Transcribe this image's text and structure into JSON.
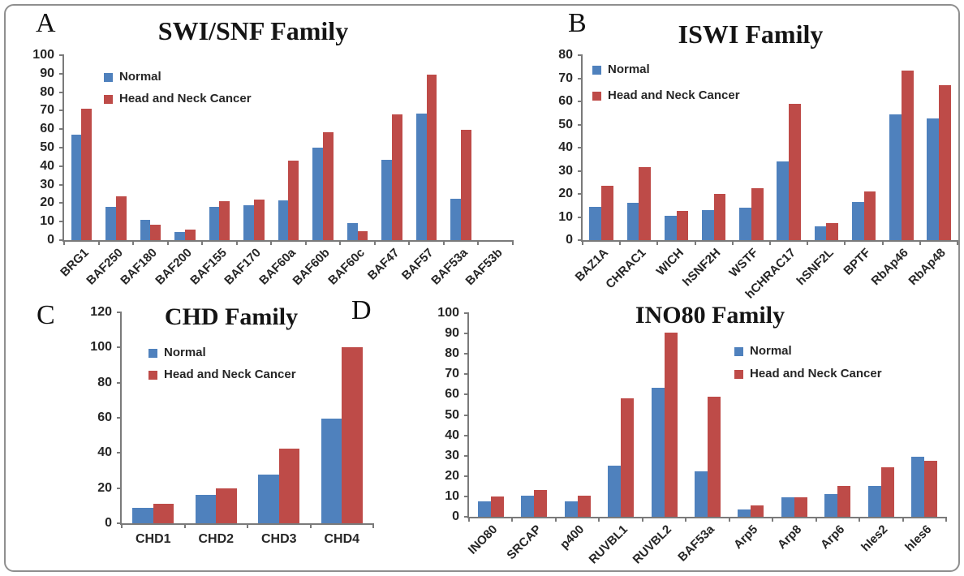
{
  "figure": {
    "border_color": "#8f8f8f",
    "background": "#ffffff"
  },
  "series_colors": {
    "normal": "#4F81BD",
    "cancer": "#BE4B48"
  },
  "chart_data": [
    {
      "panel_label": "A",
      "type": "bar",
      "title": "SWI/SNF Family",
      "categories": [
        "BRG1",
        "BAF250",
        "BAF180",
        "BAF200",
        "BAF155",
        "BAF170",
        "BAF60a",
        "BAF60b",
        "BAF60c",
        "BAF47",
        "BAF57",
        "BAF53a",
        "BAF53b"
      ],
      "series": [
        {
          "name": "Normal",
          "color": "#4F81BD",
          "values": [
            57,
            18,
            11,
            4.5,
            18,
            19,
            21.5,
            50,
            9,
            43.5,
            68.5,
            22.5,
            0
          ]
        },
        {
          "name": "Head and Neck Cancer",
          "color": "#BE4B48",
          "values": [
            71,
            23.5,
            8.5,
            5.5,
            21,
            22,
            43,
            58.5,
            5,
            68,
            89.5,
            59.5,
            0
          ]
        }
      ],
      "ylim": [
        0,
        100
      ],
      "ytick_step": 10,
      "xlabels_rotated": true,
      "grid": "off",
      "legend_position": "top-left-inside"
    },
    {
      "panel_label": "B",
      "type": "bar",
      "title": "ISWI Family",
      "categories": [
        "BAZ1A",
        "CHRAC1",
        "WICH",
        "hSNF2H",
        "WSTF",
        "hCHRAC17",
        "hSNF2L",
        "BPTF",
        "RbAp46",
        "RbAp48"
      ],
      "series": [
        {
          "name": "Normal",
          "color": "#4F81BD",
          "values": [
            14.5,
            16,
            10.5,
            13,
            14,
            34,
            6,
            16.5,
            54.5,
            52.5
          ]
        },
        {
          "name": "Head and Neck Cancer",
          "color": "#BE4B48",
          "values": [
            23.5,
            31.5,
            12.5,
            20,
            22.5,
            59,
            7.5,
            21,
            73.5,
            67
          ]
        }
      ],
      "ylim": [
        0,
        80
      ],
      "ytick_step": 10,
      "xlabels_rotated": true,
      "grid": "off",
      "legend_position": "top-left-inside"
    },
    {
      "panel_label": "C",
      "type": "bar",
      "title": "CHD Family",
      "categories": [
        "CHD1",
        "CHD2",
        "CHD3",
        "CHD4"
      ],
      "series": [
        {
          "name": "Normal",
          "color": "#4F81BD",
          "values": [
            9,
            16,
            27.5,
            59.5
          ]
        },
        {
          "name": "Head and Neck Cancer",
          "color": "#BE4B48",
          "values": [
            11,
            20,
            42.5,
            100
          ]
        }
      ],
      "ylim": [
        0,
        120
      ],
      "ytick_step": 20,
      "xlabels_rotated": false,
      "grid": "off",
      "legend_position": "top-left-inside"
    },
    {
      "panel_label": "D",
      "type": "bar",
      "title": "INO80 Family",
      "categories": [
        "INO80",
        "SRCAP",
        "p400",
        "RUVBL1",
        "RUVBL2",
        "BAF53a",
        "Arp5",
        "Arp8",
        "Arp6",
        "hIes2",
        "hIes6"
      ],
      "series": [
        {
          "name": "Normal",
          "color": "#4F81BD",
          "values": [
            7.5,
            10.5,
            7.5,
            25,
            63.5,
            22.5,
            3.5,
            9.5,
            11,
            15,
            29.5
          ]
        },
        {
          "name": "Head and Neck Cancer",
          "color": "#BE4B48",
          "values": [
            10,
            13,
            10.5,
            58,
            90.5,
            59,
            5.5,
            9.5,
            15,
            24.5,
            27.5
          ]
        }
      ],
      "ylim": [
        0,
        100
      ],
      "ytick_step": 10,
      "xlabels_rotated": true,
      "grid": "off",
      "legend_position": "right-inside"
    }
  ]
}
